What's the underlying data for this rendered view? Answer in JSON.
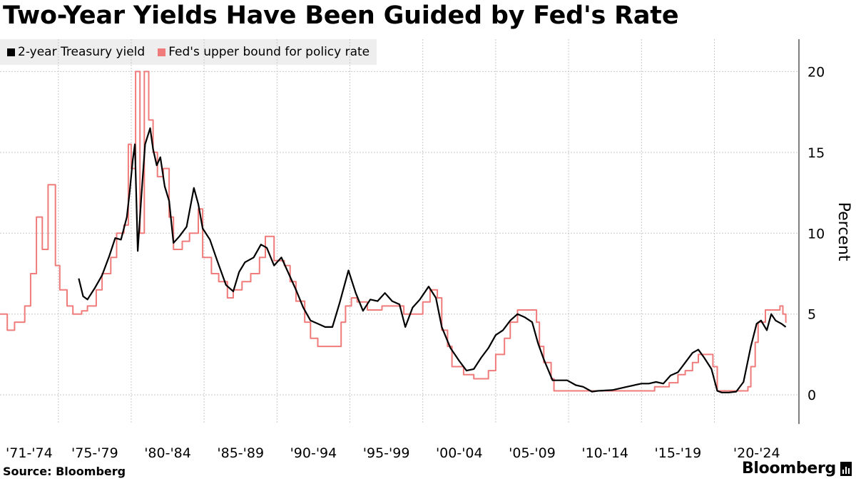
{
  "title": "Two-Year Yields Have Been Guided by Fed's Rate",
  "source": "Source: Bloomberg",
  "brand": "Bloomberg",
  "chart_data": {
    "type": "line",
    "title": "Two-Year Yields Have Been Guided by Fed's Rate",
    "ylabel": "Percent",
    "xlabel": "",
    "xlim": [
      1971.0,
      2025.8
    ],
    "ylim": [
      -1.8,
      22.0
    ],
    "y_ticks": [
      "0",
      "5",
      "10",
      "15",
      "20"
    ],
    "x_ticks": [
      "'71-'74",
      "'75-'79",
      "'80-'84",
      "'85-'89",
      "'90-'94",
      "'95-'99",
      "'00-'04",
      "'05-'09",
      "'10-'14",
      "'15-'19",
      "'20-'24"
    ],
    "grid": true,
    "y_axis_side": "right",
    "legend_position": "top-left",
    "series": [
      {
        "name": "2-year Treasury yield",
        "color": "#000000",
        "x": [
          1976.4,
          1976.7,
          1977.0,
          1977.5,
          1978.0,
          1978.5,
          1978.9,
          1979.3,
          1979.7,
          1979.9,
          1980.1,
          1980.25,
          1980.45,
          1980.7,
          1980.95,
          1981.3,
          1981.5,
          1981.75,
          1982.0,
          1982.3,
          1982.6,
          1982.9,
          1983.3,
          1983.8,
          1984.3,
          1984.6,
          1984.9,
          1985.4,
          1985.9,
          1986.5,
          1987.0,
          1987.4,
          1987.8,
          1988.4,
          1988.9,
          1989.3,
          1989.8,
          1990.3,
          1990.8,
          1991.3,
          1991.8,
          1992.3,
          1992.8,
          1993.3,
          1993.8,
          1994.3,
          1994.9,
          1995.4,
          1995.9,
          1996.4,
          1996.9,
          1997.4,
          1997.9,
          1998.4,
          1998.8,
          1999.3,
          1999.8,
          2000.4,
          2000.9,
          2001.3,
          2001.9,
          2002.5,
          2003.0,
          2003.5,
          2004.0,
          2004.5,
          2005.0,
          2005.5,
          2006.0,
          2006.5,
          2007.0,
          2007.5,
          2007.9,
          2008.3,
          2008.9,
          2009.3,
          2009.9,
          2010.5,
          2011.0,
          2011.6,
          2012.0,
          2013.0,
          2014.0,
          2015.0,
          2015.5,
          2016.0,
          2016.5,
          2017.0,
          2017.5,
          2018.0,
          2018.5,
          2018.9,
          2019.3,
          2019.8,
          2020.2,
          2020.5,
          2021.0,
          2021.5,
          2022.0,
          2022.5,
          2022.9,
          2023.2,
          2023.6,
          2023.9,
          2024.2,
          2024.6,
          2024.9
        ],
        "values": [
          7.2,
          6.1,
          5.9,
          6.6,
          7.4,
          8.6,
          9.7,
          9.6,
          11.0,
          12.6,
          14.5,
          15.5,
          8.9,
          12.3,
          15.5,
          16.5,
          15.2,
          14.2,
          14.7,
          12.9,
          12.0,
          9.4,
          9.8,
          10.4,
          12.8,
          11.8,
          10.3,
          9.6,
          8.3,
          6.8,
          6.4,
          7.6,
          8.2,
          8.5,
          9.3,
          9.1,
          8.0,
          8.5,
          7.5,
          6.5,
          5.4,
          4.6,
          4.4,
          4.2,
          4.2,
          5.7,
          7.7,
          6.3,
          5.2,
          5.9,
          5.8,
          6.3,
          5.8,
          5.6,
          4.2,
          5.4,
          5.9,
          6.7,
          6.0,
          4.2,
          2.9,
          2.1,
          1.5,
          1.6,
          2.3,
          2.9,
          3.7,
          4.0,
          4.6,
          5.0,
          4.8,
          4.5,
          3.2,
          2.2,
          0.9,
          0.9,
          0.9,
          0.6,
          0.5,
          0.2,
          0.25,
          0.3,
          0.5,
          0.7,
          0.7,
          0.8,
          0.7,
          1.2,
          1.4,
          2.0,
          2.6,
          2.8,
          2.3,
          1.6,
          0.25,
          0.15,
          0.15,
          0.2,
          0.8,
          3.0,
          4.4,
          4.6,
          4.0,
          5.0,
          4.6,
          4.4,
          4.2
        ]
      },
      {
        "name": "Fed's upper bound for policy rate",
        "color": "#f07b7b",
        "x": [
          1971.0,
          1971.5,
          1972.0,
          1972.7,
          1973.1,
          1973.5,
          1973.9,
          1974.3,
          1974.8,
          1975.1,
          1975.6,
          1976.0,
          1976.6,
          1977.0,
          1977.6,
          1978.0,
          1978.6,
          1979.0,
          1979.5,
          1979.8,
          1980.0,
          1980.3,
          1980.6,
          1980.9,
          1981.2,
          1981.5,
          1981.8,
          1982.2,
          1982.6,
          1982.9,
          1983.5,
          1984.0,
          1984.6,
          1984.9,
          1985.5,
          1986.0,
          1986.6,
          1987.0,
          1987.6,
          1988.2,
          1988.8,
          1989.2,
          1989.8,
          1990.5,
          1990.9,
          1991.3,
          1991.9,
          1992.3,
          1992.8,
          1994.0,
          1994.4,
          1994.7,
          1995.1,
          1995.5,
          1996.2,
          1997.2,
          1998.7,
          1999.5,
          2000.0,
          2000.5,
          2001.0,
          2001.3,
          2001.7,
          2002.0,
          2002.8,
          2003.5,
          2004.5,
          2005.0,
          2005.6,
          2006.0,
          2006.5,
          2007.5,
          2007.8,
          2008.0,
          2008.3,
          2008.8,
          2009.0,
          2013.0,
          2015.9,
          2016.9,
          2017.5,
          2018.0,
          2018.5,
          2018.9,
          2019.5,
          2019.9,
          2020.2,
          2022.0,
          2022.3,
          2022.5,
          2022.8,
          2023.0,
          2023.5,
          2024.5,
          2024.7,
          2024.9
        ],
        "values": [
          5.0,
          4.0,
          4.5,
          5.5,
          7.5,
          11.0,
          9.0,
          13.0,
          8.0,
          6.5,
          5.5,
          5.0,
          5.2,
          5.5,
          6.5,
          7.5,
          8.5,
          10.0,
          10.5,
          15.5,
          14.0,
          20.0,
          10.0,
          20.0,
          17.0,
          15.0,
          13.5,
          14.0,
          11.0,
          9.0,
          9.5,
          10.0,
          11.5,
          8.5,
          7.5,
          7.0,
          6.0,
          6.5,
          7.0,
          7.5,
          8.5,
          9.8,
          8.3,
          8.0,
          7.0,
          5.8,
          4.5,
          3.5,
          3.0,
          3.0,
          4.5,
          5.5,
          6.0,
          5.75,
          5.25,
          5.5,
          5.0,
          5.0,
          5.75,
          6.5,
          6.0,
          4.0,
          3.0,
          1.75,
          1.25,
          1.0,
          1.5,
          2.5,
          3.5,
          4.5,
          5.25,
          5.25,
          4.5,
          3.0,
          2.0,
          1.0,
          0.25,
          0.25,
          0.5,
          0.75,
          1.25,
          1.5,
          2.0,
          2.5,
          2.5,
          1.75,
          0.25,
          0.25,
          0.5,
          1.75,
          3.25,
          4.5,
          5.25,
          5.5,
          5.0,
          4.5
        ]
      }
    ]
  }
}
